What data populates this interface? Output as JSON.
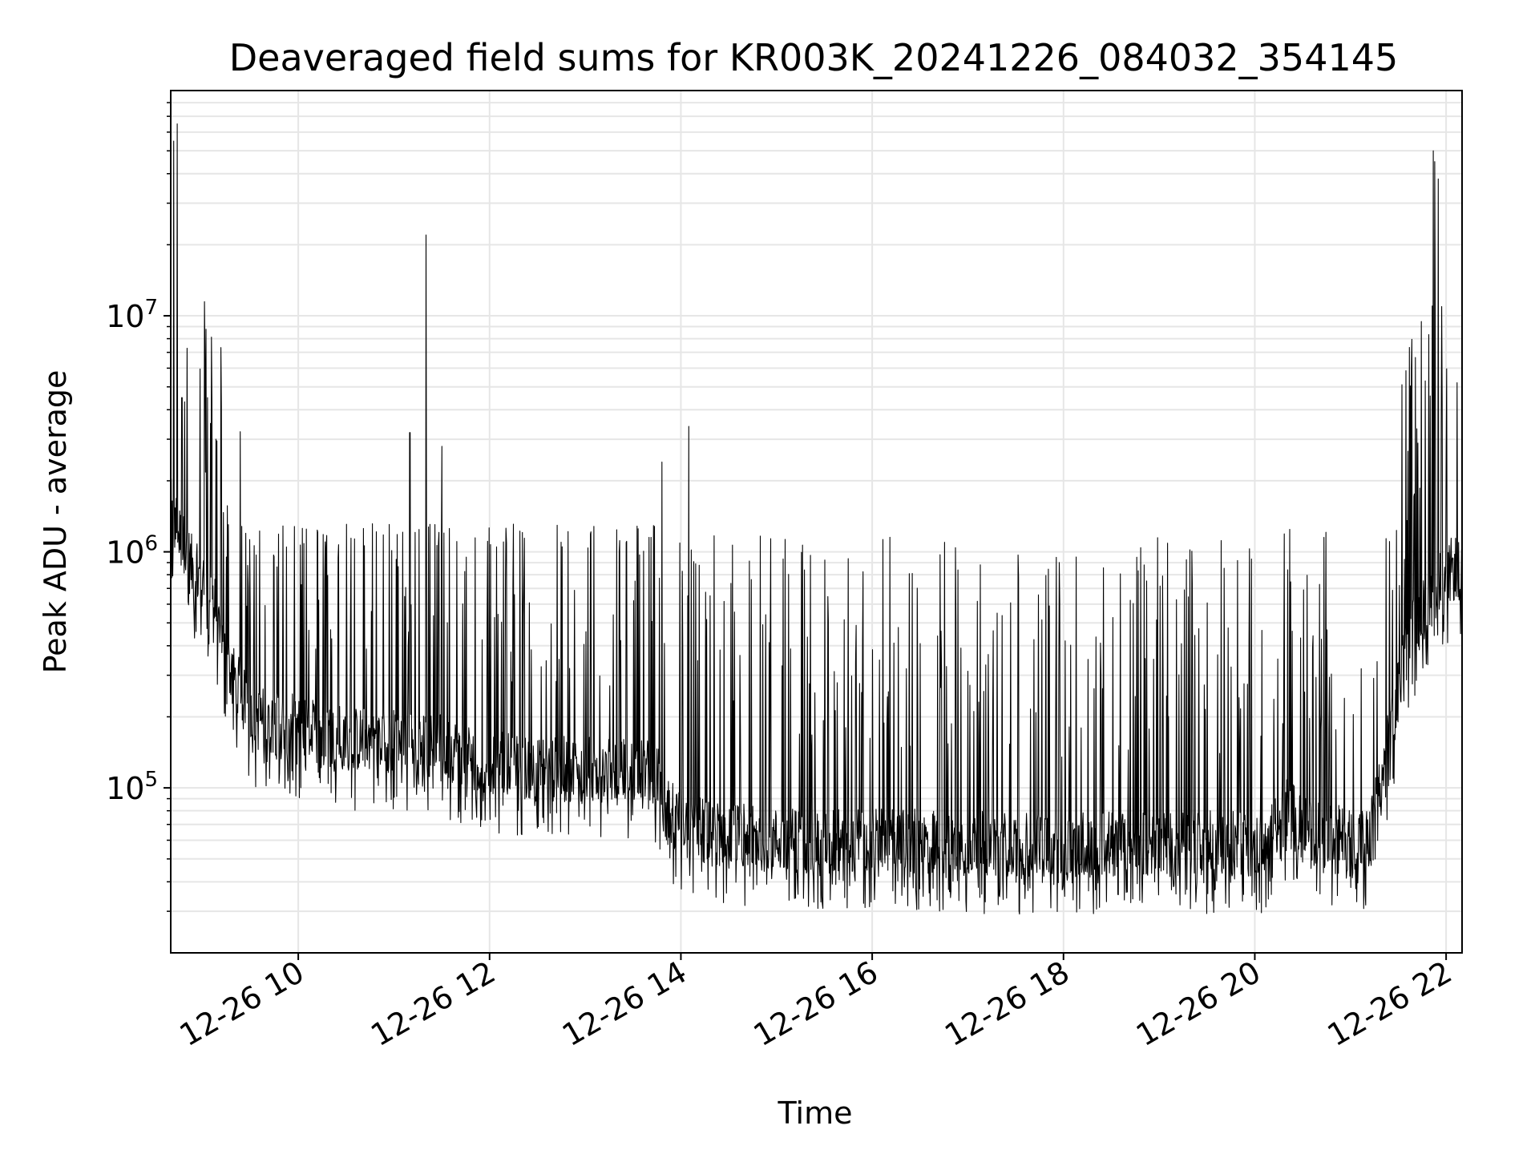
{
  "chart_data": {
    "type": "line",
    "title": "Deaveraged field sums for KR003K_20241226_084032_354145",
    "xlabel": "Time",
    "ylabel": "Peak ADU - average",
    "yscale": "log",
    "grid": true,
    "xlim": [
      "12-26 08:40",
      "12-26 22:10"
    ],
    "ylim": [
      20000,
      90000000
    ],
    "x_ticks": [
      "12-26 10",
      "12-26 12",
      "12-26 14",
      "12-26 16",
      "12-26 18",
      "12-26 20",
      "12-26 22"
    ],
    "y_ticks": [
      {
        "value": 100000,
        "base": "10",
        "exp": "5"
      },
      {
        "value": 1000000,
        "base": "10",
        "exp": "6"
      },
      {
        "value": 10000000,
        "base": "10",
        "exp": "7"
      }
    ],
    "series": [
      {
        "color": "#000000",
        "baseline": [
          [
            "12-26 08:40",
            1500000
          ],
          [
            "12-26 08:45",
            1200000
          ],
          [
            "12-26 08:55",
            800000
          ],
          [
            "12-26 09:05",
            700000
          ],
          [
            "12-26 09:15",
            350000
          ],
          [
            "12-26 09:30",
            200000
          ],
          [
            "12-26 10:00",
            180000
          ],
          [
            "12-26 10:30",
            160000
          ],
          [
            "12-26 11:00",
            160000
          ],
          [
            "12-26 11:30",
            150000
          ],
          [
            "12-26 12:00",
            130000
          ],
          [
            "12-26 12:30",
            120000
          ],
          [
            "12-26 13:00",
            120000
          ],
          [
            "12-26 13:30",
            120000
          ],
          [
            "12-26 13:45",
            115000
          ],
          [
            "12-26 13:50",
            80000
          ],
          [
            "12-26 14:15",
            65000
          ],
          [
            "12-26 15:00",
            60000
          ],
          [
            "12-26 16:00",
            60000
          ],
          [
            "12-26 17:00",
            58000
          ],
          [
            "12-26 18:00",
            58000
          ],
          [
            "12-26 19:00",
            58000
          ],
          [
            "12-26 20:00",
            58000
          ],
          [
            "12-26 20:10",
            55000
          ],
          [
            "12-26 20:12",
            90000
          ],
          [
            "12-26 20:20",
            80000
          ],
          [
            "12-26 20:35",
            65000
          ],
          [
            "12-26 21:00",
            60000
          ],
          [
            "12-26 21:12",
            60000
          ],
          [
            "12-26 21:25",
            170000
          ],
          [
            "12-26 21:35",
            400000
          ],
          [
            "12-26 21:50",
            650000
          ],
          [
            "12-26 22:00",
            800000
          ],
          [
            "12-26 22:10",
            900000
          ]
        ],
        "spikes": [
          [
            "12-26 08:42",
            55000000
          ],
          [
            "12-26 08:44",
            65000000
          ],
          [
            "12-26 08:47",
            4500000
          ],
          [
            "12-26 09:03",
            4500000
          ],
          [
            "12-26 09:05",
            3500000
          ],
          [
            "12-26 11:10",
            3200000
          ],
          [
            "12-26 11:20",
            22000000
          ],
          [
            "12-26 11:30",
            2800000
          ],
          [
            "12-26 13:48",
            2400000
          ],
          [
            "12-26 14:05",
            3400000
          ],
          [
            "12-26 21:47",
            5300000
          ],
          [
            "12-26 21:52",
            50000000
          ],
          [
            "12-26 21:53",
            45000000
          ],
          [
            "12-26 21:55",
            38000000
          ],
          [
            "12-26 22:00",
            2600000
          ]
        ]
      }
    ]
  }
}
